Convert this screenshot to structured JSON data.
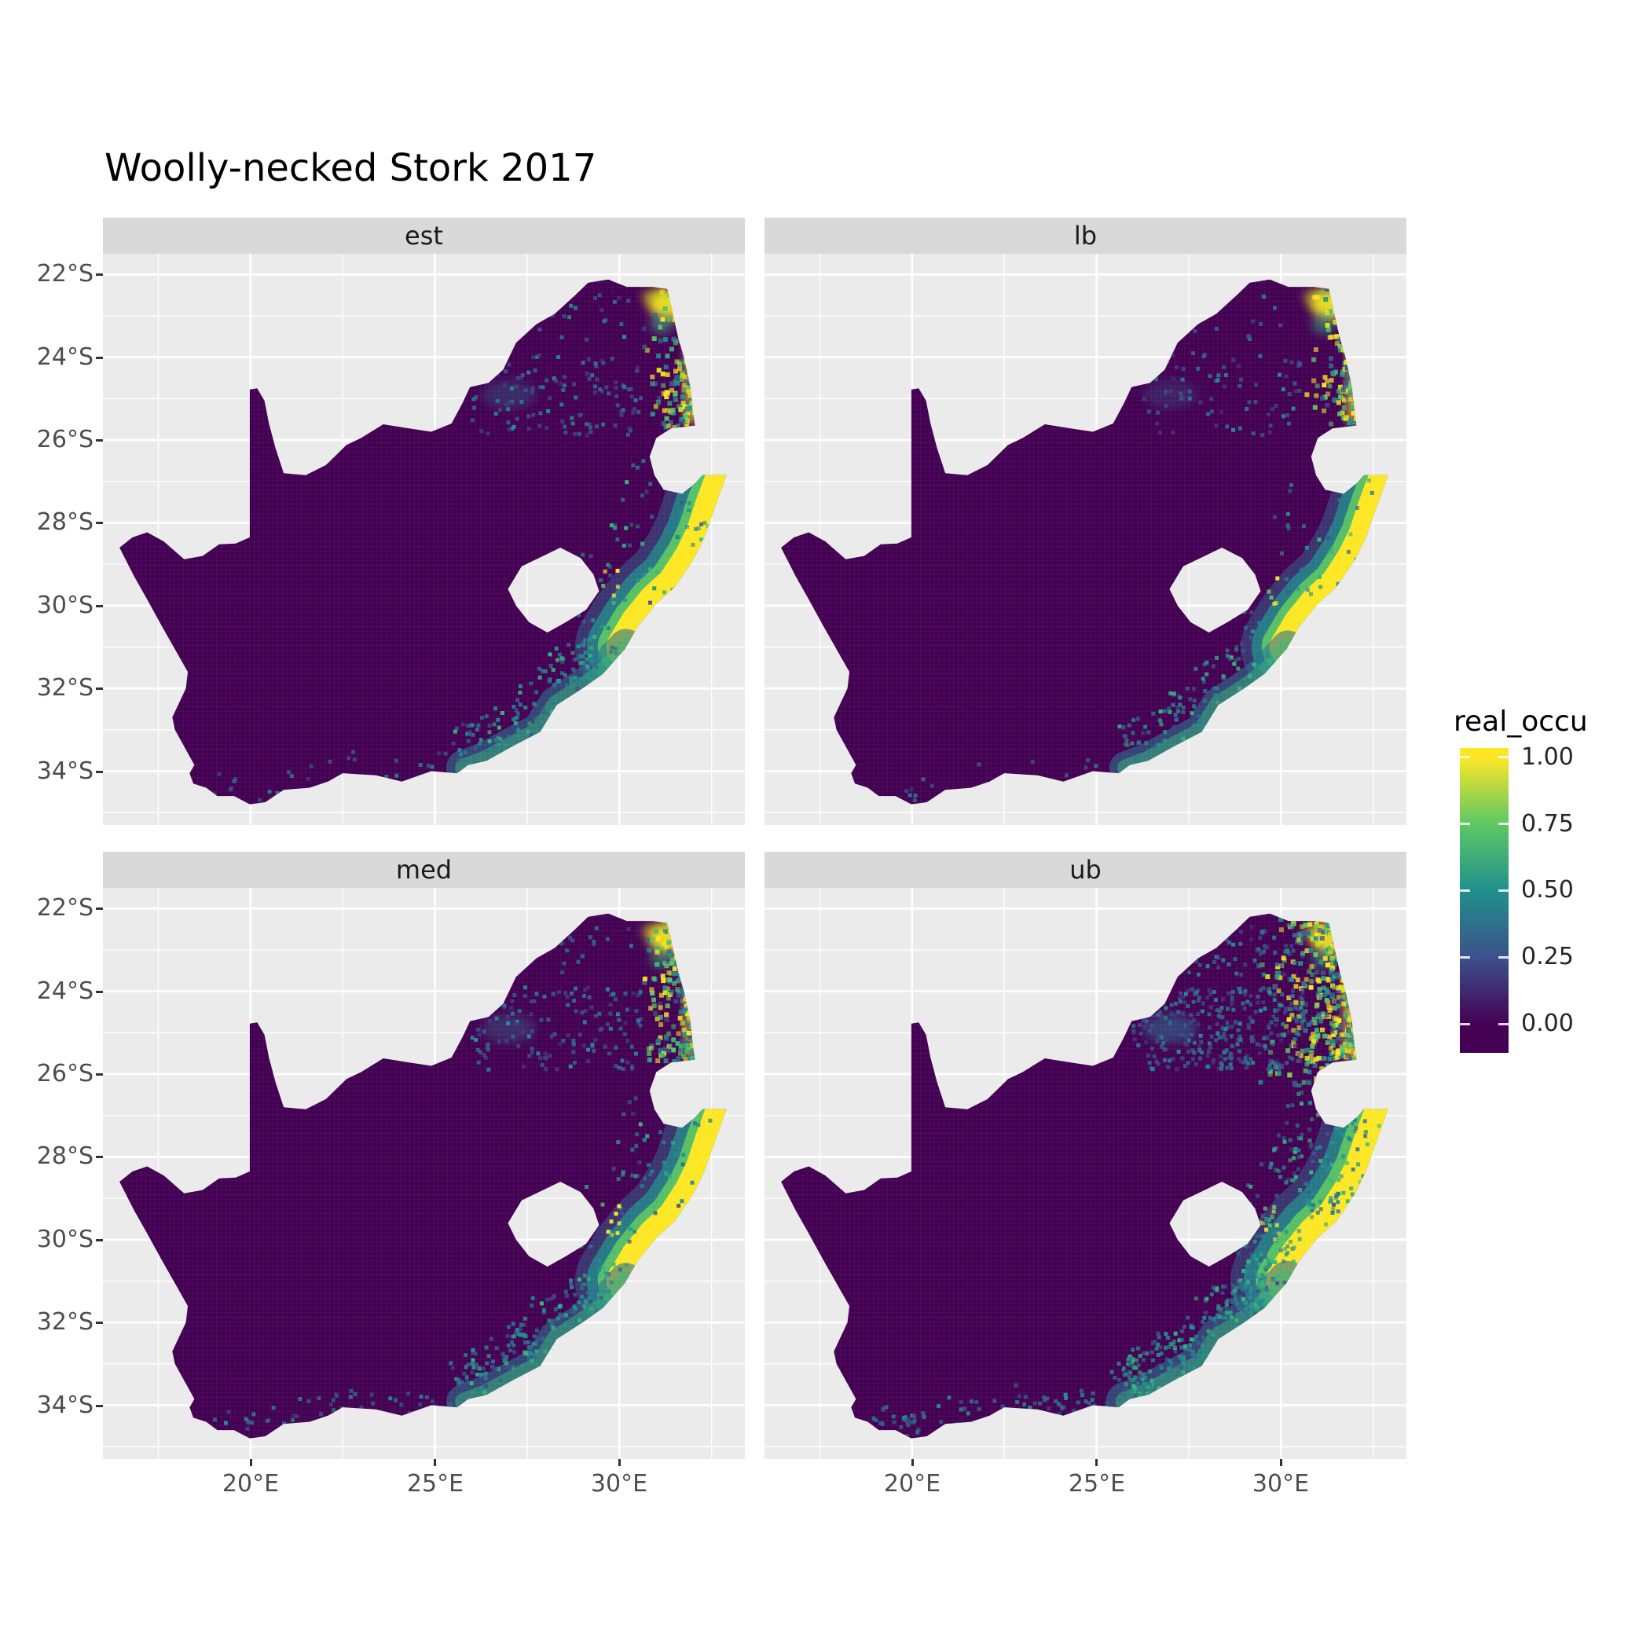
{
  "title": "Woolly-necked Stork 2017",
  "facets": [
    {
      "label": "est"
    },
    {
      "label": "lb"
    },
    {
      "label": "med"
    },
    {
      "label": "ub"
    }
  ],
  "axes": {
    "y_tick_labels": [
      "22°S",
      "24°S",
      "26°S",
      "28°S",
      "30°S",
      "32°S",
      "34°S"
    ],
    "y_tick_values": [
      22,
      24,
      26,
      28,
      30,
      32,
      34
    ],
    "x_tick_labels": [
      "20°E",
      "25°E",
      "30°E"
    ],
    "x_tick_values": [
      20,
      25,
      30
    ]
  },
  "legend": {
    "title": "real_occu",
    "tick_labels": [
      "1.00",
      "0.75",
      "0.50",
      "0.25",
      "0.00"
    ],
    "tick_values": [
      1,
      0.75,
      0.5,
      0.25,
      0
    ]
  },
  "colors": {
    "panel_bg": "#EBEBEB",
    "strip_bg": "#D9D9D9",
    "grid_major": "#FFFFFF",
    "axis_text": "#4D4D4D",
    "tick_mark": "#333333",
    "title_color": "#000000",
    "map_base": "#440154",
    "viridis": [
      [
        0,
        "#440154"
      ],
      [
        0.25,
        "#3B528B"
      ],
      [
        0.5,
        "#21908C"
      ],
      [
        0.75,
        "#5DC863"
      ],
      [
        1,
        "#FDE725"
      ]
    ]
  },
  "chart_data": {
    "type": "heatmap",
    "title": "Woolly-necked Stork 2017",
    "variable": "real_occu",
    "facets": [
      "est",
      "lb",
      "med",
      "ub"
    ],
    "palette": "viridis",
    "value_range": [
      0,
      1
    ],
    "legend_ticks": [
      0,
      0.25,
      0.5,
      0.75,
      1
    ],
    "lon_range": [
      16.0,
      33.6
    ],
    "lat_range": [
      -35.3,
      -21.5
    ],
    "summary": "Faceted raster maps of South Africa showing estimated occupancy probability (real_occu) for Woolly-necked Stork in 2017. Four facets: est (estimate), lb (lower bound), med (median), ub (upper bound). Most of the country is near 0 (dark purple). High occupancy (~1, yellow) occurs along the KwaZulu-Natal east coast and in the north-eastern lowveld (Kruger/Limpopo region), grading through green and teal (0.25-0.75) inland and along the south-east coast. 'ub' shows the widest high-occupancy extent, 'lb' the narrowest. Lesotho and Eswatini appear as holes in the raster.",
    "south_africa_outline": [
      [
        16.45,
        -28.6
      ],
      [
        16.8,
        -28.35
      ],
      [
        17.2,
        -28.23
      ],
      [
        17.65,
        -28.45
      ],
      [
        18.2,
        -28.88
      ],
      [
        18.7,
        -28.8
      ],
      [
        19.15,
        -28.52
      ],
      [
        19.6,
        -28.5
      ],
      [
        19.98,
        -28.35
      ],
      [
        19.98,
        -24.78
      ],
      [
        20.18,
        -24.75
      ],
      [
        20.38,
        -25.05
      ],
      [
        20.5,
        -25.6
      ],
      [
        20.68,
        -26.2
      ],
      [
        20.9,
        -26.8
      ],
      [
        21.5,
        -26.85
      ],
      [
        22.05,
        -26.6
      ],
      [
        22.6,
        -26.12
      ],
      [
        23.0,
        -25.95
      ],
      [
        23.6,
        -25.62
      ],
      [
        24.3,
        -25.72
      ],
      [
        24.9,
        -25.8
      ],
      [
        25.45,
        -25.6
      ],
      [
        25.75,
        -25.1
      ],
      [
        25.95,
        -24.72
      ],
      [
        26.45,
        -24.62
      ],
      [
        26.85,
        -24.3
      ],
      [
        27.2,
        -23.65
      ],
      [
        27.75,
        -23.2
      ],
      [
        28.25,
        -22.95
      ],
      [
        28.8,
        -22.5
      ],
      [
        29.15,
        -22.2
      ],
      [
        29.7,
        -22.12
      ],
      [
        30.2,
        -22.3
      ],
      [
        30.9,
        -22.3
      ],
      [
        31.3,
        -22.35
      ],
      [
        31.6,
        -23.55
      ],
      [
        31.75,
        -24.0
      ],
      [
        31.92,
        -24.7
      ],
      [
        32.0,
        -25.35
      ],
      [
        32.05,
        -25.65
      ],
      [
        31.4,
        -25.72
      ],
      [
        31.0,
        -25.95
      ],
      [
        30.82,
        -26.4
      ],
      [
        30.95,
        -26.85
      ],
      [
        31.2,
        -27.2
      ],
      [
        31.7,
        -27.3
      ],
      [
        32.05,
        -27.05
      ],
      [
        32.25,
        -26.85
      ],
      [
        32.9,
        -26.85
      ],
      [
        32.6,
        -27.6
      ],
      [
        32.3,
        -28.35
      ],
      [
        32.0,
        -28.9
      ],
      [
        31.5,
        -29.55
      ],
      [
        31.0,
        -29.95
      ],
      [
        30.5,
        -30.5
      ],
      [
        30.15,
        -31.05
      ],
      [
        29.55,
        -31.65
      ],
      [
        29.0,
        -32.0
      ],
      [
        28.3,
        -32.4
      ],
      [
        27.85,
        -33.05
      ],
      [
        27.1,
        -33.4
      ],
      [
        26.4,
        -33.75
      ],
      [
        25.9,
        -33.85
      ],
      [
        25.6,
        -34.05
      ],
      [
        24.9,
        -34.0
      ],
      [
        24.1,
        -34.25
      ],
      [
        23.4,
        -34.1
      ],
      [
        22.5,
        -34.05
      ],
      [
        22.1,
        -34.25
      ],
      [
        21.6,
        -34.4
      ],
      [
        20.9,
        -34.45
      ],
      [
        20.4,
        -34.75
      ],
      [
        19.98,
        -34.8
      ],
      [
        19.55,
        -34.6
      ],
      [
        19.1,
        -34.6
      ],
      [
        18.8,
        -34.4
      ],
      [
        18.45,
        -34.3
      ],
      [
        18.35,
        -34.05
      ],
      [
        18.48,
        -33.85
      ],
      [
        18.2,
        -33.4
      ],
      [
        17.95,
        -33.0
      ],
      [
        17.88,
        -32.7
      ],
      [
        18.25,
        -32.0
      ],
      [
        18.3,
        -31.6
      ],
      [
        17.6,
        -30.5
      ],
      [
        17.2,
        -29.85
      ],
      [
        16.85,
        -29.3
      ]
    ],
    "lesotho_hole": [
      [
        26.98,
        -29.6
      ],
      [
        27.35,
        -29.05
      ],
      [
        27.75,
        -28.88
      ],
      [
        28.4,
        -28.6
      ],
      [
        28.95,
        -28.85
      ],
      [
        29.3,
        -29.25
      ],
      [
        29.45,
        -29.65
      ],
      [
        29.1,
        -30.1
      ],
      [
        28.55,
        -30.4
      ],
      [
        28.05,
        -30.65
      ],
      [
        27.55,
        -30.4
      ],
      [
        27.2,
        -30.0
      ]
    ],
    "coast_north": [
      [
        32.88,
        -26.88
      ],
      [
        32.58,
        -27.6
      ],
      [
        32.32,
        -28.3
      ],
      [
        32.02,
        -28.85
      ],
      [
        31.55,
        -29.5
      ],
      [
        31.02,
        -29.93
      ],
      [
        30.55,
        -30.45
      ],
      [
        30.18,
        -31.0
      ]
    ],
    "coast_south": [
      [
        30.18,
        -31.0
      ],
      [
        29.55,
        -31.62
      ],
      [
        29.0,
        -31.98
      ],
      [
        28.3,
        -32.38
      ],
      [
        27.85,
        -33.02
      ],
      [
        27.1,
        -33.38
      ],
      [
        26.4,
        -33.72
      ],
      [
        25.8,
        -33.92
      ]
    ],
    "south_coast": [
      [
        25.6,
        -34.02
      ],
      [
        24.1,
        -34.22
      ],
      [
        22.5,
        -34.05
      ],
      [
        20.9,
        -34.42
      ],
      [
        20.0,
        -34.76
      ],
      [
        18.95,
        -34.42
      ]
    ],
    "palettes": {
      "ne": [
        [
          "#FDE725",
          4
        ],
        [
          "#D8E219",
          2
        ],
        [
          "#5DC863",
          3
        ],
        [
          "#35B779",
          2
        ],
        [
          "#21908C",
          3
        ],
        [
          "#31688E",
          2
        ],
        [
          "#3B528B",
          2
        ]
      ],
      "inland": [
        [
          "#2C728E",
          3
        ],
        [
          "#21908C",
          2
        ],
        [
          "#3B528B",
          3
        ],
        [
          "#443983",
          2
        ]
      ],
      "se": [
        [
          "#21908C",
          3
        ],
        [
          "#35B779",
          2
        ],
        [
          "#2C728E",
          3
        ],
        [
          "#3B528B",
          1
        ]
      ],
      "south": [
        [
          "#2C728E",
          2
        ],
        [
          "#21908C",
          1
        ],
        [
          "#3B528B",
          1
        ]
      ],
      "lesotho": [
        [
          "#FDE725",
          4
        ],
        [
          "#5DC863",
          1
        ]
      ]
    },
    "facet_params": {
      "est": {
        "seed": 11,
        "coast_scale": 1.0,
        "ne_rect": [
          30.55,
          32.25,
          -22.25,
          -25.7
        ],
        "ne_n": 340,
        "inland_n": 120,
        "se_n": 150,
        "south_n": 25,
        "north_n": 20,
        "coast_inland_n": 60,
        "lesotho_dots": 6,
        "band_scale": 1.0,
        "inland_blob_op": 0.35
      },
      "lb": {
        "seed": 23,
        "coast_scale": 0.92,
        "ne_rect": [
          30.55,
          32.25,
          -22.25,
          -25.7
        ],
        "ne_n": 290,
        "inland_n": 80,
        "se_n": 110,
        "south_n": 14,
        "north_n": 12,
        "coast_inland_n": 40,
        "lesotho_dots": 5,
        "band_scale": 0.9,
        "inland_blob_op": 0.28
      },
      "med": {
        "seed": 37,
        "coast_scale": 1.0,
        "ne_rect": [
          30.45,
          32.25,
          -22.25,
          -25.7
        ],
        "ne_n": 380,
        "inland_n": 140,
        "se_n": 180,
        "south_n": 45,
        "north_n": 25,
        "coast_inland_n": 70,
        "lesotho_dots": 8,
        "band_scale": 1.0,
        "inland_blob_op": 0.38
      },
      "ub": {
        "seed": 51,
        "coast_scale": 1.12,
        "ne_rect": [
          29.2,
          32.25,
          -22.25,
          -26.3
        ],
        "ne_n": 640,
        "inland_n": 300,
        "se_n": 300,
        "south_n": 80,
        "north_n": 60,
        "coast_inland_n": 200,
        "lesotho_dots": 10,
        "band_scale": 1.6,
        "inland_blob_op": 0.55
      }
    }
  }
}
